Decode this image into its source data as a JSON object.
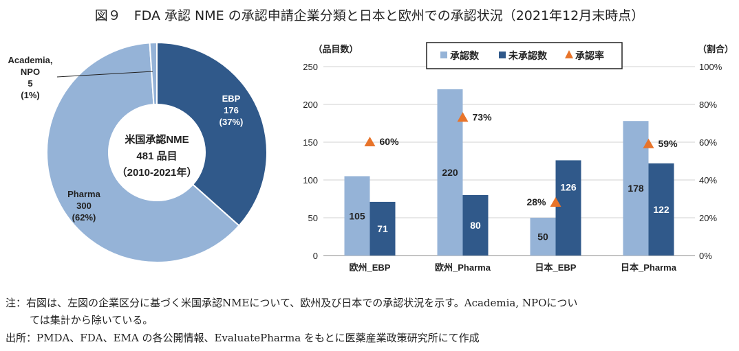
{
  "title": "図９　FDA 承認 NME の承認申請企業分類と日本と欧州での承認状況（2021年12月末時点）",
  "notes": {
    "line1": "注：右図は、左図の企業区分に基づく米国承認NMEについて、欧州及び日本での承認状況を示す。Academia, NPOについ",
    "line2": "ては集計から除いている。",
    "source": "出所：PMDA、FDA、EMA の各公開情報、EvaluatePharma をもとに医薬産業政策研究所にて作成"
  },
  "colors": {
    "light": "#95b3d7",
    "dark": "#30598a",
    "triangle": "#e8742a"
  },
  "chart_data": [
    {
      "type": "pie",
      "donut": true,
      "center_label": [
        "米国承認NME",
        "481 品目",
        "（2010-2021年）"
      ],
      "slices": [
        {
          "name": "EBP",
          "value": 176,
          "percent": "37%",
          "labels": [
            "EBP",
            "176",
            "(37%)"
          ]
        },
        {
          "name": "Pharma",
          "value": 300,
          "percent": "62%",
          "labels": [
            "Pharma",
            "300",
            "(62%)"
          ]
        },
        {
          "name": "Academia, NPO",
          "value": 5,
          "percent": "1%",
          "labels": [
            "Academia,",
            "NPO",
            "5",
            "(1%)"
          ]
        }
      ]
    },
    {
      "type": "bar",
      "ylabel": "（品目数）",
      "y2label": "（割合）",
      "ylim": [
        0,
        250
      ],
      "y2lim": [
        0,
        100
      ],
      "yticks": [
        "0",
        "50",
        "100",
        "150",
        "200",
        "250"
      ],
      "y2ticks": [
        "0%",
        "20%",
        "40%",
        "60%",
        "80%",
        "100%"
      ],
      "categories": [
        "欧州_EBP",
        "欧州_Pharma",
        "日本_EBP",
        "日本_Pharma"
      ],
      "legend": {
        "position": "top",
        "items": [
          "承認数",
          "未承認数",
          "承認率"
        ]
      },
      "series": [
        {
          "name": "承認数",
          "values": [
            105,
            220,
            50,
            178
          ]
        },
        {
          "name": "未承認数",
          "values": [
            71,
            80,
            126,
            122
          ]
        },
        {
          "name": "承認率",
          "type": "scatter",
          "axis": "right",
          "values": [
            60,
            73,
            28,
            59
          ],
          "labels": [
            "60%",
            "73%",
            "28%",
            "59%"
          ]
        }
      ]
    }
  ]
}
